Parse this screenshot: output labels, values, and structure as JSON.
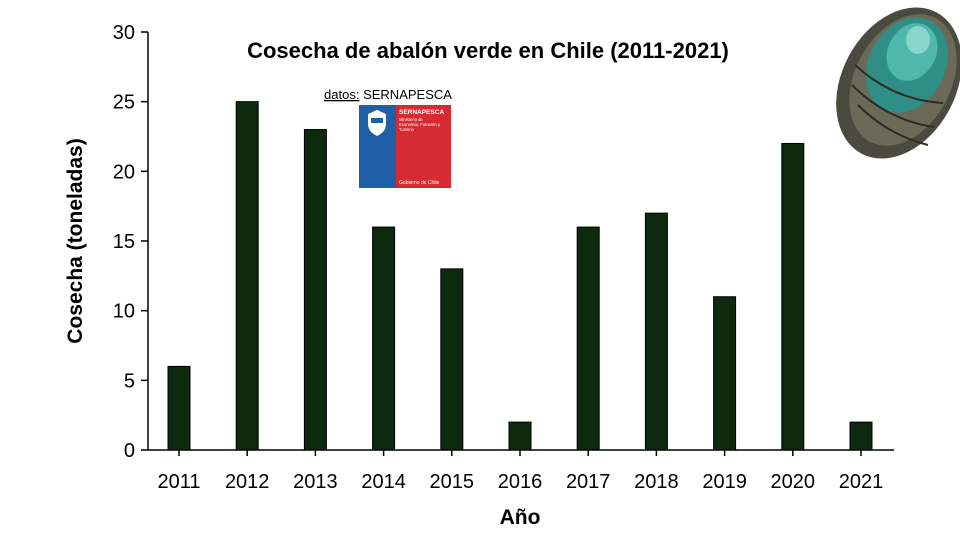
{
  "chart_data": {
    "type": "bar",
    "title": "Cosecha de abalón verde en Chile (2011-2021)",
    "xlabel": "Año",
    "ylabel": "Cosecha (toneladas)",
    "categories": [
      "2011",
      "2012",
      "2013",
      "2014",
      "2015",
      "2016",
      "2017",
      "2018",
      "2019",
      "2020",
      "2021"
    ],
    "values": [
      6,
      25,
      23,
      16,
      13,
      2,
      16,
      17,
      11,
      22,
      2
    ],
    "ylim": [
      0,
      30
    ],
    "yticks": [
      0,
      5,
      10,
      15,
      20,
      25,
      30
    ],
    "grid": false,
    "bar_color": "#0d2a0f"
  },
  "source": {
    "prefix": "datos:",
    "name": "SERNAPESCA"
  },
  "logo": {
    "name": "SERNAPESCA",
    "subtitle": "Ministerio de Economía, Fomento y Turismo",
    "footer": "Gobierno de Chile",
    "colors": {
      "blue": "#1f5fa8",
      "red": "#d62b32"
    }
  },
  "illustration": {
    "icon": "abalone-shell-icon"
  }
}
